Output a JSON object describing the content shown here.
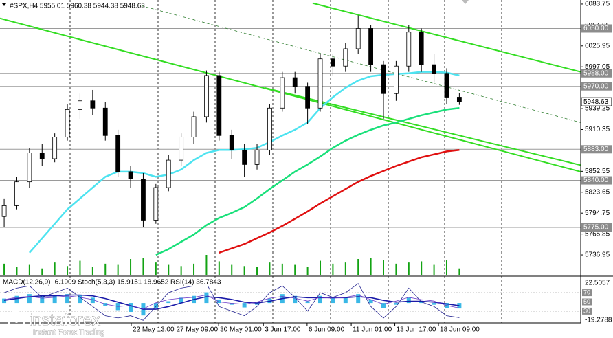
{
  "header": {
    "title": "#SPX,H4 5955.01 5960.38 5944.38 5948.63"
  },
  "chart_data": {
    "type": "candlestick",
    "open": [
      5790,
      5805,
      5838,
      5878,
      5870,
      5900,
      5938,
      5950,
      5940,
      5902,
      5852,
      5842,
      5785,
      5830,
      5868,
      5900,
      5928,
      5985,
      5902,
      5882,
      5862,
      5882,
      5940,
      5982,
      5970,
      5940,
      6008,
      5998,
      6022,
      6050,
      6000,
      5960,
      5998,
      6045,
      6000,
      5988,
      5955.01
    ],
    "high": [
      5815,
      5845,
      5885,
      5890,
      5905,
      5945,
      5960,
      5965,
      5948,
      5910,
      5860,
      5850,
      5835,
      5875,
      5905,
      5935,
      5992,
      5990,
      5910,
      5890,
      5890,
      5945,
      5990,
      5990,
      5975,
      6015,
      6015,
      6030,
      6068,
      6055,
      6005,
      6005,
      6055,
      6050,
      6015,
      5995,
      5960.38
    ],
    "low": [
      5775,
      5800,
      5830,
      5860,
      5865,
      5895,
      5925,
      5930,
      5895,
      5845,
      5830,
      5775,
      5780,
      5825,
      5860,
      5890,
      5920,
      5895,
      5870,
      5845,
      5855,
      5875,
      5935,
      5960,
      5918,
      5935,
      5985,
      5990,
      6015,
      5990,
      5925,
      5950,
      5990,
      5990,
      5975,
      5945,
      5944.38
    ],
    "close": [
      5805,
      5838,
      5878,
      5870,
      5900,
      5938,
      5950,
      5940,
      5902,
      5852,
      5842,
      5785,
      5830,
      5868,
      5900,
      5928,
      5985,
      5902,
      5882,
      5862,
      5882,
      5940,
      5982,
      5970,
      5940,
      6008,
      5998,
      6022,
      6050,
      6000,
      5960,
      5998,
      6045,
      6000,
      5988,
      5955,
      5948.63
    ],
    "xlim": [
      -0.33,
      45.6
    ],
    "ylim": [
      5708.5,
      6089.4
    ],
    "yticks": [
      6083.75,
      6054.05,
      6025.95,
      5997.05,
      5939.25,
      5910.35,
      5852.55,
      5823.65,
      5794.75,
      5765.85,
      5736.95
    ],
    "levels": [
      {
        "value": 6050,
        "label": "6050.00"
      },
      {
        "value": 5988,
        "label": "5988.00"
      },
      {
        "value": 5970,
        "label": "5970.00"
      },
      {
        "value": 5883,
        "label": "5883.00"
      },
      {
        "value": 5840,
        "label": "5840.00"
      },
      {
        "value": 5775,
        "label": "5775.00"
      }
    ],
    "current_price": 5948.63,
    "xticks": [
      {
        "value": 10.05,
        "label": "22 May 13:00"
      },
      {
        "value": 13.5,
        "label": "27 May 09:00"
      },
      {
        "value": 16.96,
        "label": "30 May 01:00"
      },
      {
        "value": 20.5,
        "label": "3 Jun 17:00"
      },
      {
        "value": 23.96,
        "label": "6 Jun 09:00"
      },
      {
        "value": 27.45,
        "label": "11 Jun 01:00"
      },
      {
        "value": 30.9,
        "label": "13 Jun 17:00"
      },
      {
        "value": 34.35,
        "label": "18 Jun 09:00"
      }
    ],
    "moving_averages": [
      {
        "color": "#4de3f0",
        "values": [
          null,
          null,
          5740,
          5760,
          5780,
          5800,
          5815,
          5830,
          5845,
          5852,
          5852,
          5850,
          5845,
          5848,
          5855,
          5868,
          5878,
          5882,
          5882,
          5883,
          5885,
          5893,
          5902,
          5910,
          5920,
          5940,
          5955,
          5968,
          5978,
          5984,
          5986,
          5987,
          5988,
          5990,
          5990,
          5989,
          5985
        ]
      },
      {
        "color": "#19e07a",
        "values": [
          null,
          null,
          null,
          null,
          null,
          null,
          null,
          null,
          null,
          null,
          null,
          null,
          5737,
          5745,
          5755,
          5765,
          5778,
          5788,
          5795,
          5803,
          5815,
          5828,
          5840,
          5852,
          5862,
          5873,
          5885,
          5895,
          5903,
          5910,
          5916,
          5920,
          5925,
          5930,
          5934,
          5938,
          5940
        ]
      },
      {
        "color": "#e01010",
        "values": [
          null,
          null,
          null,
          null,
          null,
          null,
          null,
          null,
          null,
          null,
          null,
          null,
          null,
          null,
          null,
          null,
          null,
          5740,
          5746,
          5752,
          5760,
          5768,
          5777,
          5787,
          5797,
          5808,
          5818,
          5828,
          5838,
          5846,
          5853,
          5860,
          5866,
          5872,
          5876,
          5880,
          5882
        ]
      }
    ],
    "trend_lines": [
      {
        "color": "#33dd22",
        "x": [
          24.4,
          45.6
        ],
        "values": [
          6085,
          5990
        ]
      },
      {
        "color": "#33dd22",
        "x": [
          -0.33,
          45.6
        ],
        "values": [
          6064,
          5852
        ]
      },
      {
        "color": "#33dd22",
        "x": [
          20.6,
          45.6
        ],
        "values": [
          5968,
          5861
        ]
      },
      {
        "color": "#2e7d2e",
        "x": [
          10.5,
          45.6
        ],
        "values": [
          6083,
          5920
        ]
      }
    ],
    "volume_color": "#13a313",
    "volumes": [
      20,
      15,
      18,
      12,
      22,
      16,
      25,
      14,
      20,
      18,
      28,
      30,
      22,
      18,
      16,
      20,
      35,
      24,
      18,
      16,
      15,
      22,
      20,
      18,
      15,
      25,
      20,
      22,
      28,
      30,
      26,
      20,
      22,
      24,
      18,
      26,
      12
    ],
    "indicator": {
      "label": "MACD(12,26,9) -6.1909 Stoch(5,3,3) 15.9151 18.9652 RSI(14) 36.7843",
      "ylim": [
        -19.2788,
        22.5057
      ],
      "yticks": [
        22.5057,
        -19.2788
      ],
      "y2lim": [
        0,
        100
      ],
      "y2ticks": [
        70,
        50,
        30
      ],
      "macd": [
        5,
        8,
        10,
        9,
        8,
        10,
        9,
        6,
        -3,
        -8,
        -10,
        -14,
        -6,
        2,
        6,
        8,
        12,
        4,
        -2,
        -5,
        -2,
        5,
        10,
        8,
        2,
        8,
        6,
        6,
        10,
        4,
        -6,
        -2,
        6,
        2,
        -2,
        -6,
        -6.1909
      ],
      "signal": [
        3,
        5,
        7,
        8,
        8,
        9,
        9,
        8,
        5,
        1,
        -3,
        -7,
        -7,
        -4,
        0,
        4,
        7,
        6,
        4,
        1,
        0,
        2,
        5,
        7,
        6,
        6,
        6,
        6,
        7,
        6,
        3,
        1,
        2,
        2,
        1,
        -1,
        -3
      ],
      "stoch": [
        70,
        80,
        85,
        60,
        70,
        80,
        60,
        40,
        20,
        15,
        20,
        10,
        40,
        70,
        80,
        85,
        90,
        40,
        30,
        20,
        40,
        70,
        85,
        60,
        30,
        70,
        60,
        70,
        90,
        40,
        15,
        40,
        80,
        50,
        40,
        20,
        15.9151
      ],
      "rsi": [
        55,
        60,
        62,
        58,
        60,
        63,
        60,
        55,
        45,
        40,
        42,
        35,
        48,
        55,
        58,
        60,
        65,
        50,
        47,
        45,
        50,
        58,
        62,
        58,
        52,
        60,
        58,
        60,
        65,
        55,
        45,
        52,
        60,
        55,
        52,
        42,
        36.7843
      ]
    }
  },
  "watermark": {
    "brand": "instaforex",
    "slogan": "Instant Forex Trading"
  }
}
